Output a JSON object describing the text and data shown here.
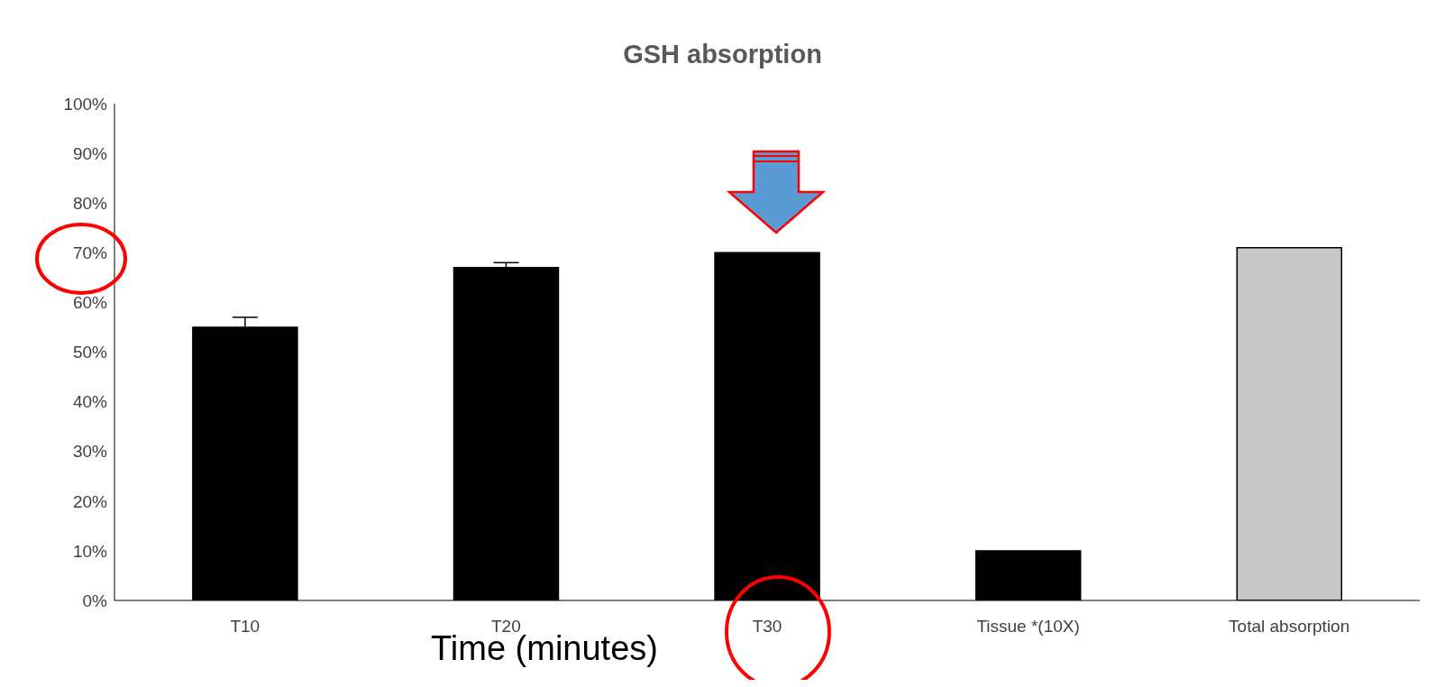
{
  "chart_data": {
    "type": "bar",
    "title": "GSH absorption",
    "xlabel": "Time (minutes)",
    "categories": [
      "T10",
      "T20",
      "T30",
      "Tissue *(10X)",
      "Total absorption"
    ],
    "values": [
      55,
      67,
      70,
      10,
      71
    ],
    "errors": [
      2,
      1,
      null,
      null,
      null
    ],
    "colors": [
      "#000000",
      "#000000",
      "#000000",
      "#000000",
      "#c8c8c8"
    ],
    "ylim": [
      0,
      100
    ],
    "yticks": [
      {
        "value": 0,
        "label": "0%"
      },
      {
        "value": 10,
        "label": "10%"
      },
      {
        "value": 20,
        "label": "20%"
      },
      {
        "value": 30,
        "label": "30%"
      },
      {
        "value": 40,
        "label": "40%"
      },
      {
        "value": 50,
        "label": "50%"
      },
      {
        "value": 60,
        "label": "60%"
      },
      {
        "value": 70,
        "label": "70%"
      },
      {
        "value": 80,
        "label": "80%"
      },
      {
        "value": 90,
        "label": "90%"
      },
      {
        "value": 100,
        "label": "100%"
      }
    ],
    "grid": false,
    "legend": false
  }
}
